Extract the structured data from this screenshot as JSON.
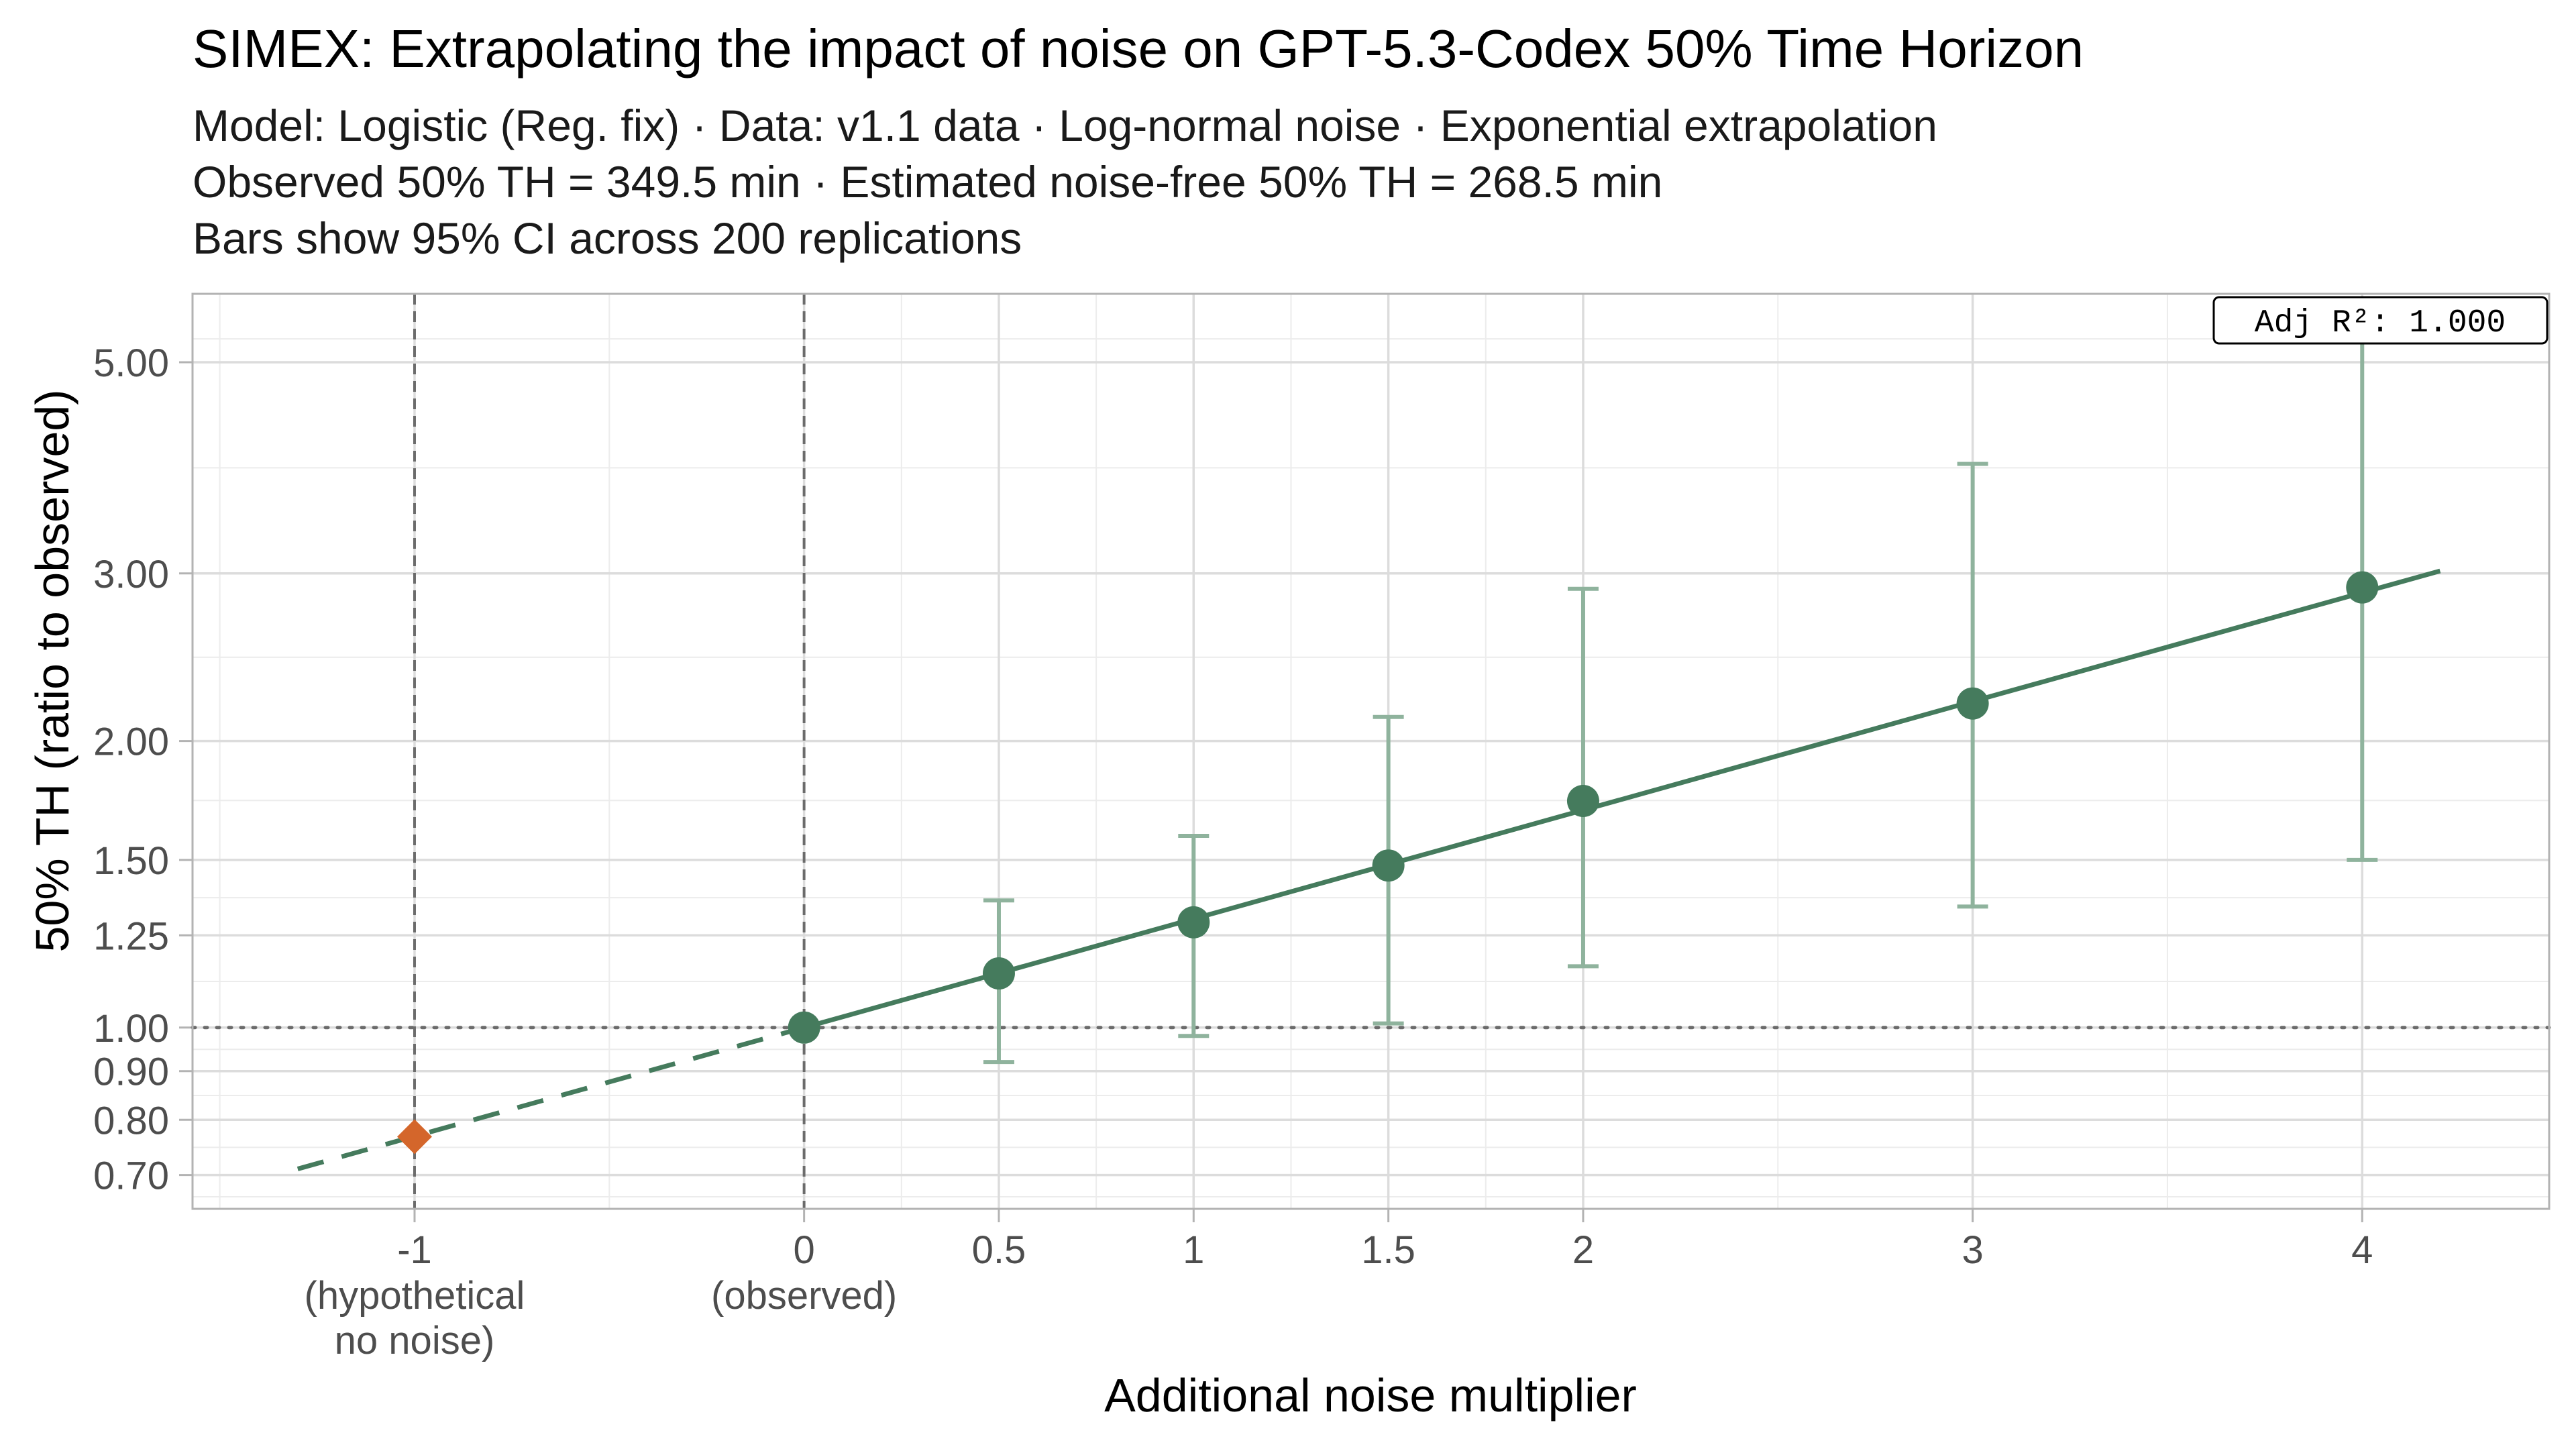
{
  "chart_data": {
    "type": "line",
    "title": "SIMEX: Extrapolating the impact of noise on GPT-5.3-Codex 50% Time Horizon",
    "subtitle_lines": [
      "Model: Logistic (Reg. fix) · Data: v1.1 data · Log-normal noise · Exponential extrapolation",
      "Observed 50% TH = 349.5 min · Estimated noise-free 50% TH = 268.5 min",
      "Bars show 95% CI across 200 replications"
    ],
    "xlabel": "Additional noise multiplier",
    "ylabel": "50% TH (ratio to observed)",
    "y_scale": "log",
    "xlim": [
      -1.57,
      4.48
    ],
    "ylim": [
      0.645,
      5.9
    ],
    "grid": true,
    "x_ticks": [
      {
        "value": -1,
        "label": "-1",
        "sub": [
          "(hypothetical",
          "no noise)"
        ]
      },
      {
        "value": 0,
        "label": "0",
        "sub": [
          "(observed)"
        ]
      },
      {
        "value": 0.5,
        "label": "0.5",
        "sub": []
      },
      {
        "value": 1,
        "label": "1",
        "sub": []
      },
      {
        "value": 1.5,
        "label": "1.5",
        "sub": []
      },
      {
        "value": 2,
        "label": "2",
        "sub": []
      },
      {
        "value": 3,
        "label": "3",
        "sub": []
      },
      {
        "value": 4,
        "label": "4",
        "sub": []
      }
    ],
    "y_ticks": [
      {
        "value": 0.7,
        "label": "0.70"
      },
      {
        "value": 0.8,
        "label": "0.80"
      },
      {
        "value": 0.9,
        "label": "0.90"
      },
      {
        "value": 1.0,
        "label": "1.00"
      },
      {
        "value": 1.25,
        "label": "1.25"
      },
      {
        "value": 1.5,
        "label": "1.50"
      },
      {
        "value": 2.0,
        "label": "2.00"
      },
      {
        "value": 3.0,
        "label": "3.00"
      },
      {
        "value": 5.0,
        "label": "5.00"
      }
    ],
    "points": [
      {
        "x": 0,
        "y": 1.0,
        "lo": null,
        "hi": null
      },
      {
        "x": 0.5,
        "y": 1.14,
        "lo": 0.92,
        "hi": 1.36
      },
      {
        "x": 1,
        "y": 1.29,
        "lo": 0.98,
        "hi": 1.59
      },
      {
        "x": 1.5,
        "y": 1.48,
        "lo": 1.01,
        "hi": 2.12
      },
      {
        "x": 2,
        "y": 1.73,
        "lo": 1.16,
        "hi": 2.89
      },
      {
        "x": 3,
        "y": 2.19,
        "lo": 1.34,
        "hi": 3.91
      },
      {
        "x": 4,
        "y": 2.9,
        "lo": 1.5,
        "hi": 5.7
      }
    ],
    "extrapolated_point": {
      "x": -1,
      "y": 0.768
    },
    "fit": {
      "type": "exponential",
      "x_range": [
        -1.3,
        4.2
      ],
      "y_at_0": 1.0,
      "log_slope": 0.263
    },
    "reference_lines": {
      "vertical": [
        -1,
        0
      ],
      "horizontal": [
        1.0
      ]
    },
    "annotation": "Adj R²: 1.000",
    "colors": {
      "series": "#457b5d",
      "error_bar": "#8fb39d",
      "extrapolated": "#d4662b",
      "reference": "#6b6b6b"
    }
  }
}
